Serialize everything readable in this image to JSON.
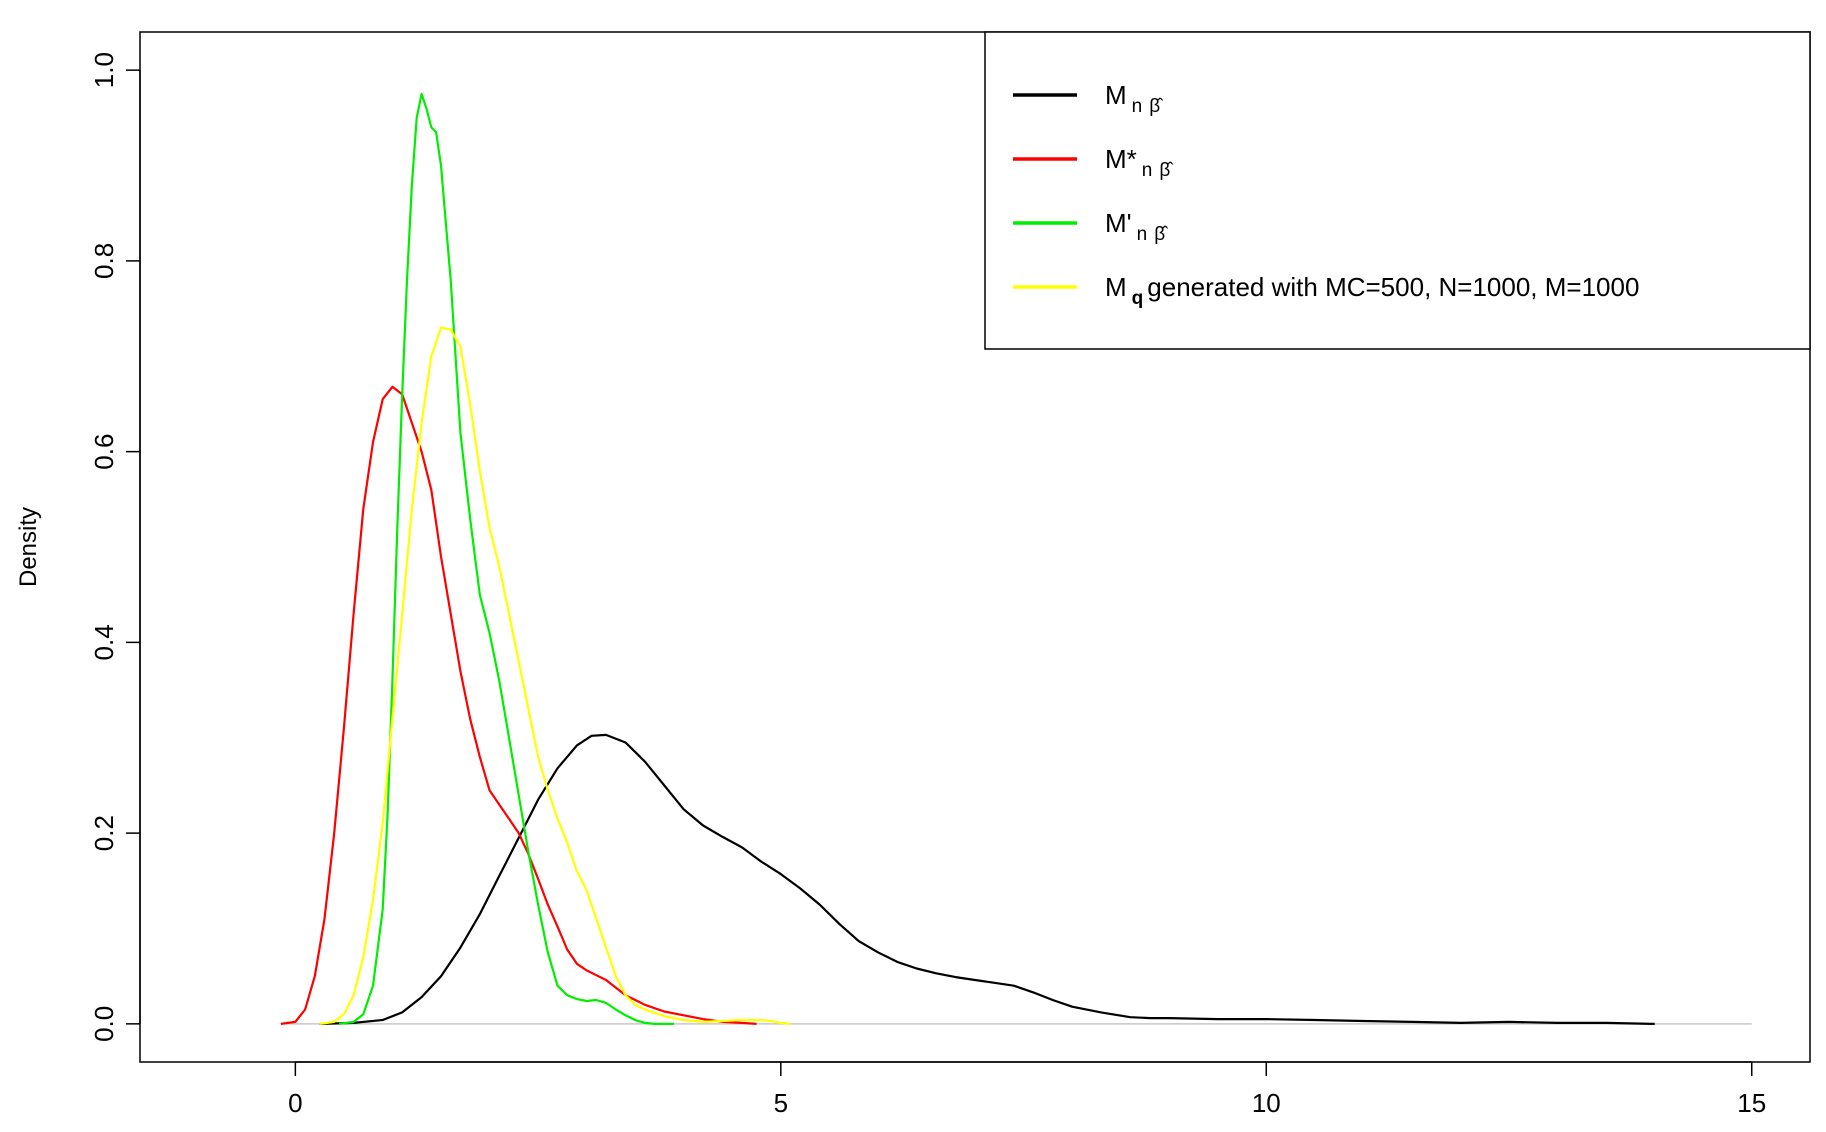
{
  "chart_data": {
    "type": "line",
    "title": "",
    "xlabel": "",
    "ylabel": "Density",
    "xlim": [
      -1.6,
      15.6
    ],
    "ylim": [
      -0.04,
      1.04
    ],
    "xticks": [
      0,
      5,
      10,
      15
    ],
    "yticks": [
      0.0,
      0.2,
      0.4,
      0.6,
      0.8,
      1.0
    ],
    "xtick_labels": [
      "0",
      "5",
      "10",
      "15"
    ],
    "ytick_labels": [
      "0.0",
      "0.2",
      "0.4",
      "0.6",
      "0.8",
      "1.0"
    ],
    "baseline": 0,
    "baseline_color": "#c8c8c8",
    "grid": false,
    "legend_position": "top-right",
    "series": [
      {
        "color": "#000000",
        "legend": {
          "main": "M",
          "sub": "n",
          "hat": "β̂",
          "suffix": ""
        },
        "x": [
          0.25,
          0.6,
          0.9,
          1.1,
          1.3,
          1.5,
          1.7,
          1.9,
          2.1,
          2.3,
          2.5,
          2.7,
          2.9,
          3.05,
          3.2,
          3.4,
          3.6,
          3.8,
          4.0,
          4.2,
          4.4,
          4.6,
          4.8,
          5.0,
          5.2,
          5.4,
          5.6,
          5.8,
          6.0,
          6.2,
          6.4,
          6.6,
          6.8,
          7.0,
          7.2,
          7.4,
          7.6,
          7.8,
          8.0,
          8.3,
          8.6,
          8.8,
          9.0,
          9.5,
          10.0,
          10.5,
          11.0,
          11.5,
          12.0,
          12.5,
          13.0,
          13.5,
          14.0
        ],
        "y": [
          0.0,
          0.001,
          0.004,
          0.012,
          0.028,
          0.05,
          0.08,
          0.115,
          0.155,
          0.195,
          0.235,
          0.268,
          0.292,
          0.302,
          0.303,
          0.295,
          0.275,
          0.25,
          0.225,
          0.208,
          0.196,
          0.185,
          0.17,
          0.157,
          0.142,
          0.125,
          0.105,
          0.087,
          0.075,
          0.065,
          0.058,
          0.053,
          0.049,
          0.046,
          0.043,
          0.04,
          0.033,
          0.025,
          0.018,
          0.012,
          0.007,
          0.006,
          0.006,
          0.005,
          0.005,
          0.004,
          0.003,
          0.002,
          0.001,
          0.002,
          0.001,
          0.001,
          0.0
        ]
      },
      {
        "color": "#ff0000",
        "legend": {
          "main": "M*",
          "sub": "n",
          "hat": "β̂",
          "suffix": ""
        },
        "x": [
          -0.15,
          0.0,
          0.1,
          0.2,
          0.3,
          0.4,
          0.5,
          0.6,
          0.7,
          0.8,
          0.9,
          1.0,
          1.1,
          1.2,
          1.3,
          1.4,
          1.5,
          1.6,
          1.7,
          1.8,
          1.9,
          2.0,
          2.1,
          2.2,
          2.3,
          2.4,
          2.5,
          2.6,
          2.7,
          2.8,
          2.9,
          3.0,
          3.1,
          3.2,
          3.3,
          3.4,
          3.6,
          3.8,
          4.0,
          4.2,
          4.4,
          4.6,
          4.75
        ],
        "y": [
          0.0,
          0.002,
          0.015,
          0.05,
          0.11,
          0.2,
          0.31,
          0.43,
          0.54,
          0.61,
          0.655,
          0.668,
          0.66,
          0.63,
          0.6,
          0.56,
          0.49,
          0.43,
          0.37,
          0.32,
          0.28,
          0.245,
          0.23,
          0.215,
          0.2,
          0.178,
          0.152,
          0.125,
          0.102,
          0.078,
          0.063,
          0.056,
          0.051,
          0.046,
          0.038,
          0.03,
          0.02,
          0.013,
          0.009,
          0.005,
          0.002,
          0.001,
          0.0
        ]
      },
      {
        "color": "#00ee00",
        "legend": {
          "main": "M'",
          "sub": "n",
          "hat": "β̂",
          "suffix": ""
        },
        "x": [
          0.45,
          0.6,
          0.7,
          0.8,
          0.9,
          0.95,
          1.0,
          1.05,
          1.1,
          1.15,
          1.2,
          1.25,
          1.3,
          1.35,
          1.4,
          1.45,
          1.5,
          1.55,
          1.6,
          1.7,
          1.8,
          1.9,
          2.0,
          2.1,
          2.2,
          2.3,
          2.4,
          2.5,
          2.6,
          2.7,
          2.8,
          2.9,
          3.0,
          3.1,
          3.2,
          3.3,
          3.4,
          3.5,
          3.6,
          3.7,
          3.8,
          3.9
        ],
        "y": [
          0.0,
          0.002,
          0.01,
          0.04,
          0.12,
          0.22,
          0.36,
          0.52,
          0.66,
          0.78,
          0.88,
          0.95,
          0.975,
          0.96,
          0.94,
          0.935,
          0.9,
          0.84,
          0.78,
          0.62,
          0.53,
          0.45,
          0.41,
          0.36,
          0.3,
          0.24,
          0.18,
          0.125,
          0.075,
          0.04,
          0.03,
          0.026,
          0.024,
          0.025,
          0.022,
          0.015,
          0.009,
          0.004,
          0.001,
          0.0,
          0.0,
          0.0
        ]
      },
      {
        "color": "#ffff00",
        "legend": {
          "main": "M",
          "sub": "q",
          "hat": "",
          "suffix": " generated with MC=500, N=1000, M=1000"
        },
        "x": [
          0.25,
          0.4,
          0.5,
          0.6,
          0.7,
          0.8,
          0.9,
          1.0,
          1.1,
          1.2,
          1.3,
          1.4,
          1.5,
          1.6,
          1.7,
          1.8,
          1.9,
          2.0,
          2.1,
          2.2,
          2.3,
          2.4,
          2.5,
          2.6,
          2.7,
          2.8,
          2.9,
          3.0,
          3.1,
          3.2,
          3.3,
          3.4,
          3.5,
          3.6,
          3.8,
          4.0,
          4.2,
          4.4,
          4.6,
          4.8,
          4.9,
          5.0,
          5.1
        ],
        "y": [
          0.0,
          0.002,
          0.01,
          0.03,
          0.07,
          0.13,
          0.21,
          0.32,
          0.43,
          0.54,
          0.63,
          0.7,
          0.73,
          0.728,
          0.71,
          0.65,
          0.58,
          0.52,
          0.48,
          0.43,
          0.38,
          0.33,
          0.28,
          0.245,
          0.215,
          0.19,
          0.16,
          0.14,
          0.11,
          0.08,
          0.05,
          0.03,
          0.02,
          0.015,
          0.008,
          0.004,
          0.002,
          0.003,
          0.004,
          0.004,
          0.003,
          0.001,
          0.0
        ]
      }
    ]
  }
}
